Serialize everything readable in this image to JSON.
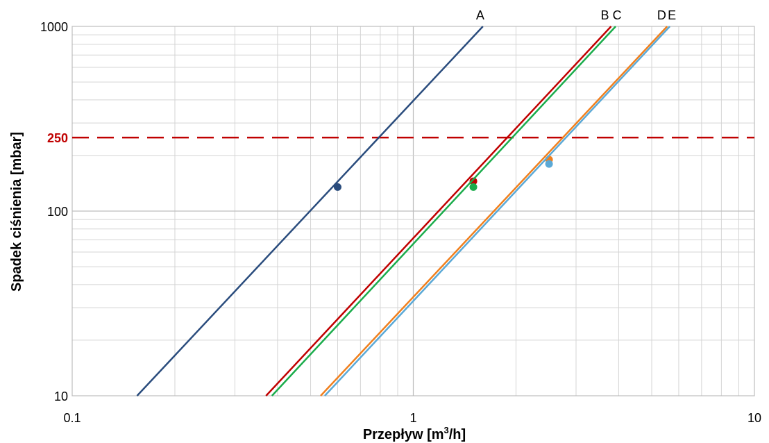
{
  "chart_data": {
    "type": "line",
    "x_scale": "log",
    "y_scale": "log",
    "xlim": [
      0.1,
      10
    ],
    "ylim": [
      10,
      1000
    ],
    "grid": true,
    "xlabel": "Przepływ [m³/h]",
    "xlabel_main": "Przepływ [m",
    "xlabel_sup": "3",
    "xlabel_tail": "/h]",
    "ylabel": "Spadek ciśnienia [mbar]",
    "x_ticks": [
      "0.1",
      "1",
      "10"
    ],
    "y_ticks": [
      "10",
      "100",
      "1000"
    ],
    "reference_line": {
      "y": 250,
      "label": "250",
      "color": "#c00000",
      "style": "dashed"
    },
    "series": [
      {
        "name": "A",
        "color": "#2a4c7d",
        "x": [
          0.155,
          1.6
        ],
        "y": [
          10,
          1000
        ],
        "marker": {
          "x": 0.6,
          "y": 135
        }
      },
      {
        "name": "B",
        "color": "#c00000",
        "x": [
          0.37,
          3.8
        ],
        "y": [
          10,
          1000
        ],
        "marker": {
          "x": 1.5,
          "y": 145
        }
      },
      {
        "name": "C",
        "color": "#1aac4b",
        "x": [
          0.385,
          3.92
        ],
        "y": [
          10,
          1000
        ],
        "marker": {
          "x": 1.5,
          "y": 135
        }
      },
      {
        "name": "D",
        "color": "#f07f1d",
        "x": [
          0.535,
          5.55
        ],
        "y": [
          10,
          1000
        ],
        "marker": {
          "x": 2.5,
          "y": 190
        }
      },
      {
        "name": "E",
        "color": "#5ba9d6",
        "x": [
          0.55,
          5.65
        ],
        "y": [
          10,
          1000
        ],
        "marker": {
          "x": 2.5,
          "y": 180
        }
      }
    ]
  }
}
